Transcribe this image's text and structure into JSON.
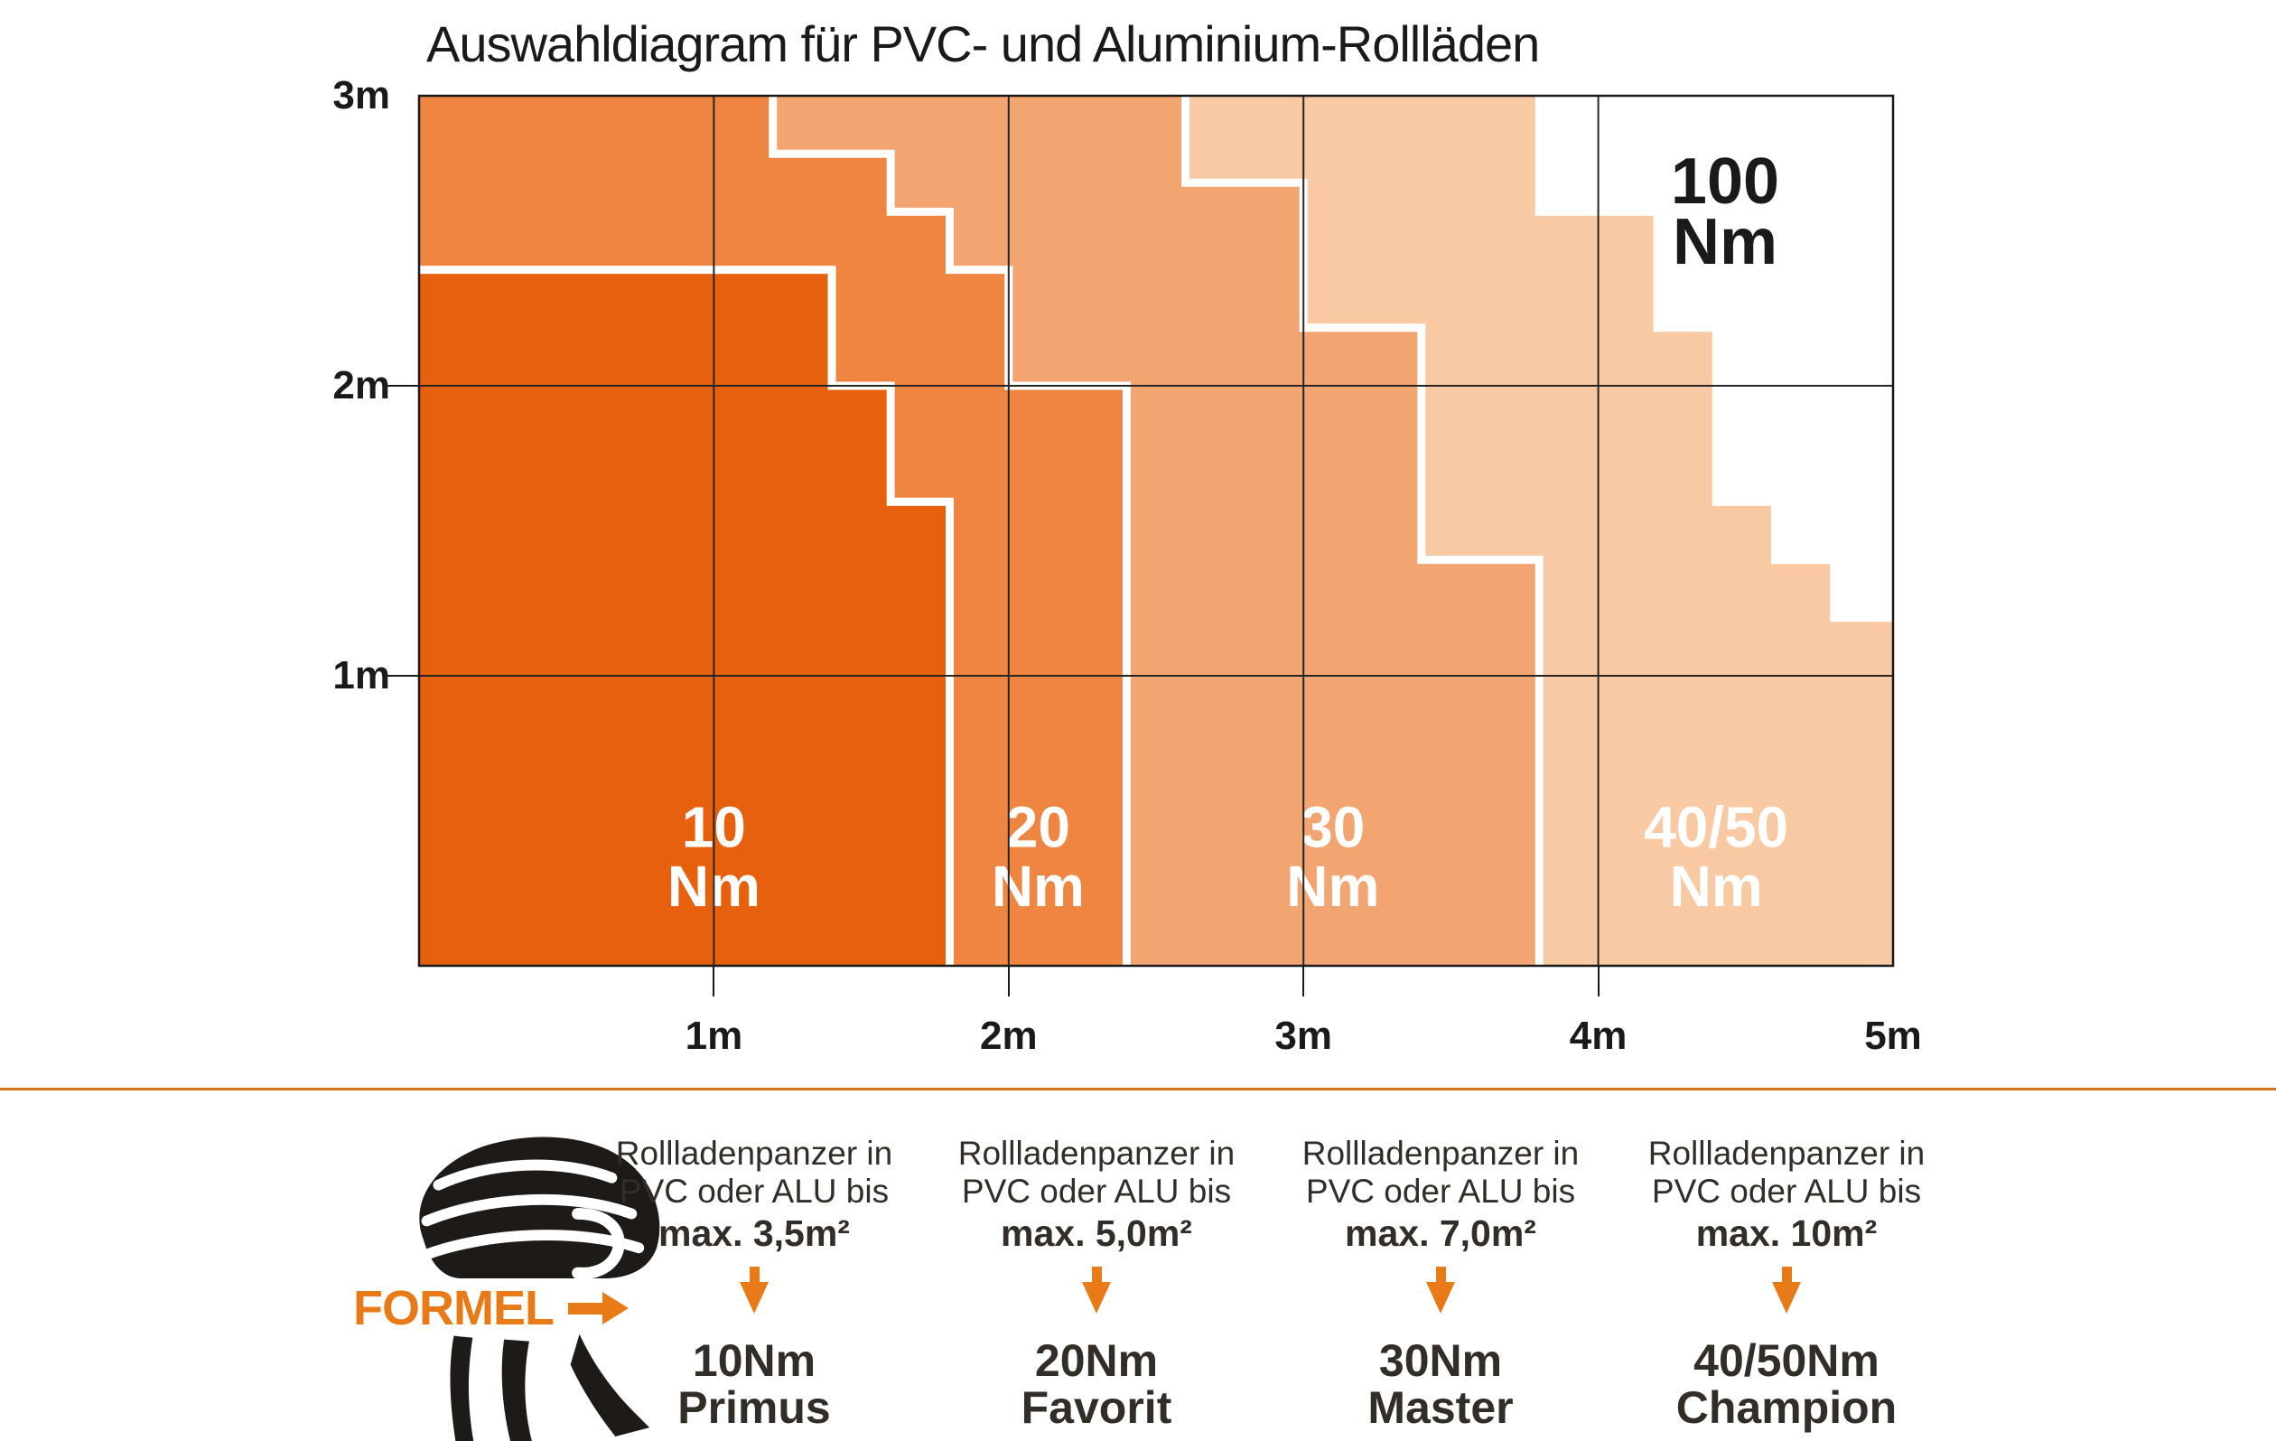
{
  "title": "Auswahldiagram für PVC- und Aluminium-Rollläden",
  "colors": {
    "accent": "#e87b18",
    "divider": "#d9731a",
    "text_dark": "#332d28",
    "grid": "#262626",
    "frame": "#1a1a1a",
    "boundary_stroke": "#ffffff"
  },
  "chart_data": {
    "type": "area",
    "title": "Auswahldiagram für PVC- und Aluminium-Rollläden",
    "xlim": [
      0,
      5
    ],
    "ylim": [
      0,
      3
    ],
    "grid": true,
    "x_ticks": [
      {
        "value": 1,
        "label": "1m"
      },
      {
        "value": 2,
        "label": "2m"
      },
      {
        "value": 3,
        "label": "3m"
      },
      {
        "value": 4,
        "label": "4m"
      },
      {
        "value": 5,
        "label": "5m"
      }
    ],
    "y_ticks": [
      {
        "value": 3,
        "label": "3m"
      },
      {
        "value": 2,
        "label": "2m"
      },
      {
        "value": 1,
        "label": "1m"
      }
    ],
    "regions": [
      {
        "name": "10 Nm",
        "label_lines": [
          "10",
          "Nm"
        ],
        "color": "#e7600d",
        "label_color": "#ffffff",
        "label_pos_m": {
          "x": 1.0,
          "y1": 0.41,
          "y2": 0.205
        },
        "boundary_m": [
          [
            0,
            2.4
          ],
          [
            1.4,
            2.4
          ],
          [
            1.4,
            2.0
          ],
          [
            1.6,
            2.0
          ],
          [
            1.6,
            1.6
          ],
          [
            1.8,
            1.6
          ],
          [
            1.8,
            0
          ]
        ]
      },
      {
        "name": "20 Nm",
        "label_lines": [
          "20",
          "Nm"
        ],
        "color": "#ee8541",
        "label_color": "#ffffff",
        "label_pos_m": {
          "x": 2.1,
          "y1": 0.41,
          "y2": 0.205
        },
        "boundary_m": [
          [
            1.2,
            3
          ],
          [
            1.2,
            2.8
          ],
          [
            1.6,
            2.8
          ],
          [
            1.6,
            2.6
          ],
          [
            1.8,
            2.6
          ],
          [
            1.8,
            2.4
          ],
          [
            2.0,
            2.4
          ],
          [
            2.0,
            2.0
          ],
          [
            2.4,
            2.0
          ],
          [
            2.4,
            0
          ]
        ]
      },
      {
        "name": "30 Nm",
        "label_lines": [
          "30",
          "Nm"
        ],
        "color": "#f3a571",
        "label_color": "#ffffff",
        "label_pos_m": {
          "x": 3.1,
          "y1": 0.41,
          "y2": 0.205
        },
        "boundary_m": [
          [
            2.6,
            3
          ],
          [
            2.6,
            2.7
          ],
          [
            3.0,
            2.7
          ],
          [
            3.0,
            2.2
          ],
          [
            3.4,
            2.2
          ],
          [
            3.4,
            1.4
          ],
          [
            3.8,
            1.4
          ],
          [
            3.8,
            0
          ]
        ]
      },
      {
        "name": "40/50 Nm",
        "label_lines": [
          "40/50",
          "Nm"
        ],
        "color": "#f8c9a3",
        "label_color": "#ffffff",
        "label_pos_m": {
          "x": 4.4,
          "y1": 0.41,
          "y2": 0.205
        },
        "boundary_m": [
          [
            3.8,
            3
          ],
          [
            3.8,
            2.6
          ],
          [
            4.2,
            2.6
          ],
          [
            4.2,
            2.2
          ],
          [
            4.4,
            2.2
          ],
          [
            4.4,
            1.6
          ],
          [
            4.6,
            1.6
          ],
          [
            4.6,
            1.4
          ],
          [
            4.8,
            1.4
          ],
          [
            4.8,
            1.2
          ],
          [
            5.0,
            1.2
          ]
        ]
      },
      {
        "name": "100 Nm",
        "label_lines": [
          "100",
          "Nm"
        ],
        "color": "#ffffff",
        "label_color": "#1a1a1a",
        "label_pos_m": {
          "x": 4.43,
          "y1": 2.63,
          "y2": 2.42
        },
        "boundary_m": null
      }
    ]
  },
  "formula": {
    "label": "FORMEL",
    "columns": [
      {
        "line1": "Rollladenpanzer in",
        "line2": "PVC oder ALU bis",
        "max": "max. 3,5m²",
        "torque": "10Nm",
        "product": "Primus"
      },
      {
        "line1": "Rollladenpanzer in",
        "line2": "PVC oder ALU bis",
        "max": "max. 5,0m²",
        "torque": "20Nm",
        "product": "Favorit"
      },
      {
        "line1": "Rollladenpanzer in",
        "line2": "PVC oder ALU bis",
        "max": "max. 7,0m²",
        "torque": "30Nm",
        "product": "Master"
      },
      {
        "line1": "Rollladenpanzer in",
        "line2": "PVC oder ALU bis",
        "max": "max. 10m²",
        "torque": "40/50Nm",
        "product": "Champion"
      }
    ]
  }
}
